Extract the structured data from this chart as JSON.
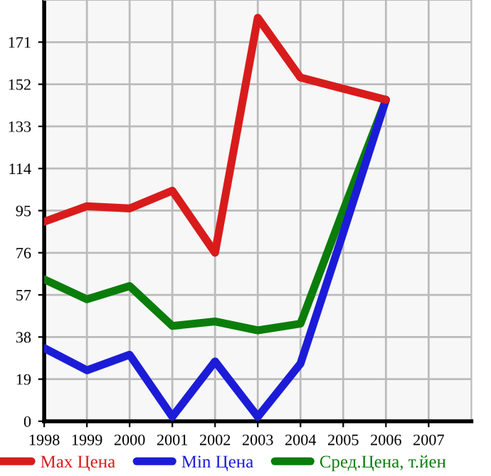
{
  "chart_data": {
    "type": "line",
    "x": [
      1998,
      1999,
      2000,
      2001,
      2002,
      2003,
      2004,
      2005,
      2006
    ],
    "series": [
      {
        "name": "Max Цена",
        "color": "#d81c1c",
        "values": [
          90,
          97,
          96,
          104,
          76,
          182,
          155,
          150,
          145
        ]
      },
      {
        "name": "Min Цена",
        "color": "#1c1cd8",
        "values": [
          33,
          23,
          30,
          2,
          27,
          2,
          26,
          85,
          145
        ]
      },
      {
        "name": "Сред.Цена, т.йен",
        "color": "#0b7d0b",
        "values": [
          64,
          55,
          61,
          43,
          45,
          41,
          44,
          95,
          145
        ]
      }
    ],
    "xlim": [
      1998,
      2008
    ],
    "xticks": [
      1998,
      1999,
      2000,
      2001,
      2002,
      2003,
      2004,
      2005,
      2006,
      2007
    ],
    "ylim": [
      0,
      190
    ],
    "yticks": [
      0,
      19,
      38,
      57,
      76,
      95,
      114,
      133,
      152,
      171
    ],
    "grid": true,
    "legend": "bottom",
    "marker": "none",
    "line_style": "solid"
  }
}
